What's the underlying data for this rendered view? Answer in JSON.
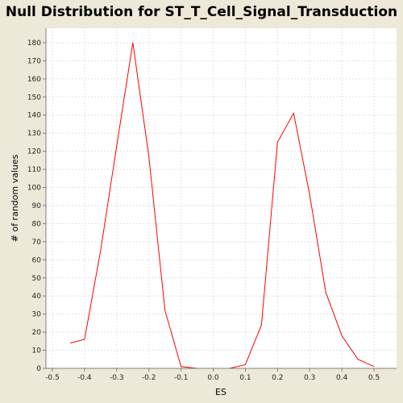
{
  "chart_data": {
    "type": "line",
    "title": "Null Distribution for ST_T_Cell_Signal_Transduction",
    "xlabel": "ES",
    "ylabel": "# of random values",
    "xlim": [
      -0.52,
      0.57
    ],
    "ylim": [
      0,
      188
    ],
    "x_ticks": [
      -0.5,
      -0.4,
      -0.3,
      -0.2,
      -0.1,
      0.0,
      0.1,
      0.2,
      0.3,
      0.4,
      0.5
    ],
    "x_tick_labels": [
      "-0.5",
      "-0.4",
      "-0.3",
      "-0.2",
      "-0.1",
      "0.0",
      "0.1",
      "0.2",
      "0.3",
      "0.4",
      "0.5"
    ],
    "y_ticks": [
      0,
      10,
      20,
      30,
      40,
      50,
      60,
      70,
      80,
      90,
      100,
      110,
      120,
      130,
      140,
      150,
      160,
      170,
      180
    ],
    "y_tick_labels": [
      "0",
      "10",
      "20",
      "30",
      "40",
      "50",
      "60",
      "70",
      "80",
      "90",
      "100",
      "110",
      "120",
      "130",
      "140",
      "150",
      "160",
      "170",
      "180"
    ],
    "grid": true,
    "series": [
      {
        "color": "#FF0000",
        "x": [
          -0.445,
          -0.4,
          -0.35,
          -0.3,
          -0.25,
          -0.2,
          -0.15,
          -0.1,
          -0.05,
          0.0,
          0.05,
          0.1,
          0.15,
          0.2,
          0.25,
          0.3,
          0.35,
          0.4,
          0.45,
          0.5
        ],
        "y": [
          14,
          16,
          65,
          123,
          180,
          117,
          32,
          1,
          0,
          0,
          0,
          2,
          24,
          125,
          141,
          96,
          42,
          18,
          5,
          1
        ]
      }
    ]
  }
}
